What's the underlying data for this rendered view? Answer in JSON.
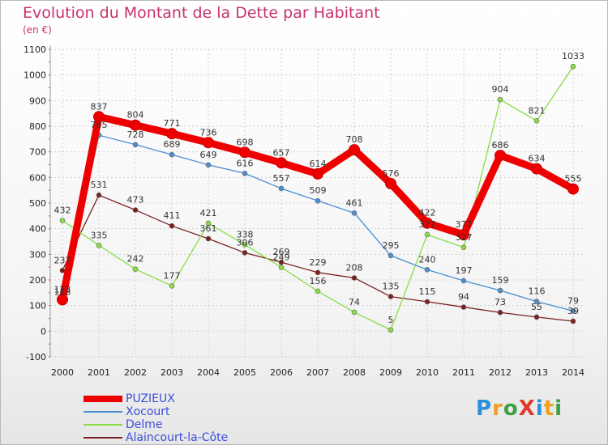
{
  "chart_data": {
    "type": "line",
    "title": "Evolution du Montant de la Dette par Habitant",
    "subtitle": "(en €)",
    "x": [
      "2000",
      "2001",
      "2002",
      "2003",
      "2004",
      "2005",
      "2006",
      "2007",
      "2008",
      "2009",
      "2010",
      "2011",
      "2012",
      "2013",
      "2014"
    ],
    "ylim": [
      -100,
      1100
    ],
    "yticks": [
      -100,
      0,
      100,
      200,
      300,
      400,
      500,
      600,
      700,
      800,
      900,
      1000,
      1100
    ],
    "grid": true,
    "legend_position": "bottom-left",
    "series": [
      {
        "name": "PUZIEUX",
        "color": "#ee0000",
        "values": [
          123,
          837,
          804,
          771,
          736,
          698,
          657,
          614,
          708,
          576,
          422,
          377,
          686,
          634,
          555
        ]
      },
      {
        "name": "Xocourt",
        "color": "#4a8fd0",
        "values": [
          113,
          765,
          728,
          689,
          649,
          616,
          557,
          509,
          461,
          295,
          240,
          197,
          159,
          116,
          79
        ]
      },
      {
        "name": "Delme",
        "color": "#88dd44",
        "values": [
          432,
          335,
          242,
          177,
          421,
          338,
          249,
          156,
          74,
          5,
          377,
          327,
          904,
          821,
          1033
        ]
      },
      {
        "name": "Alaincourt-la-Côte",
        "color": "#7a2020",
        "values": [
          237,
          531,
          473,
          411,
          361,
          306,
          269,
          229,
          208,
          135,
          115,
          94,
          73,
          55,
          39
        ]
      }
    ]
  },
  "logo": {
    "text": "ProXiti"
  }
}
